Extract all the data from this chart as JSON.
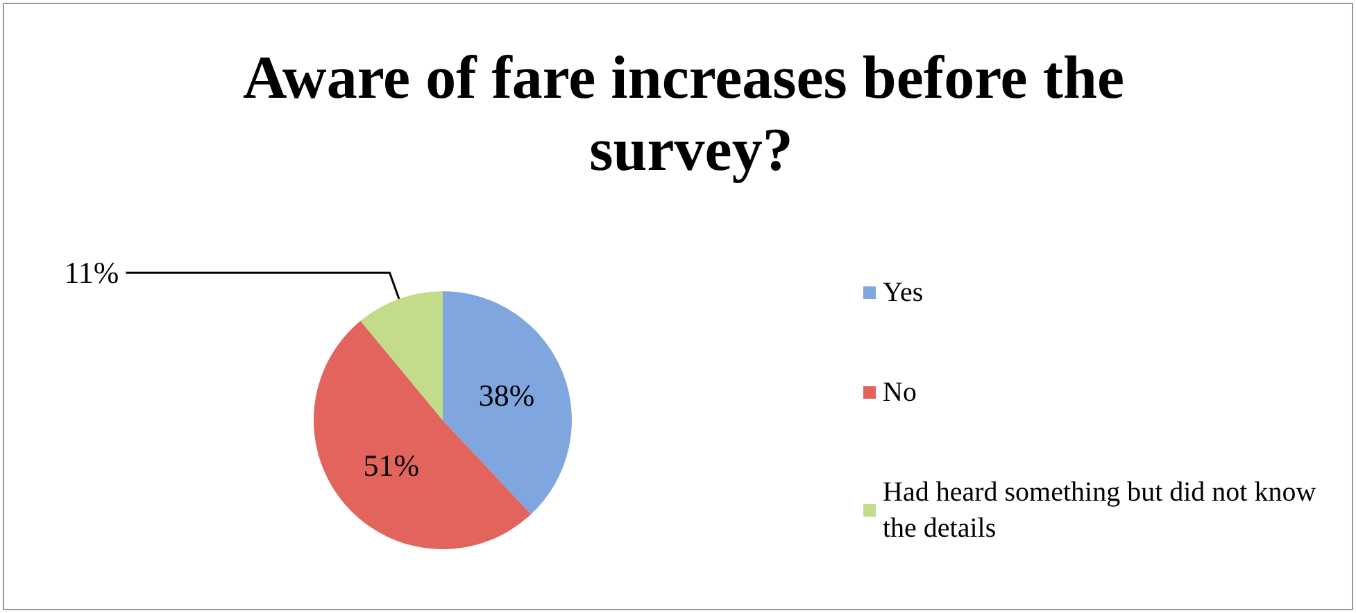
{
  "chart_data": {
    "type": "pie",
    "title": "Aware of fare increases before the survey?",
    "categories": [
      "Yes",
      "No",
      "Had heard something but did not know the details"
    ],
    "values": [
      38,
      51,
      11
    ],
    "value_labels": [
      "38%",
      "51%",
      "11%"
    ],
    "colors": [
      "#7fa6de",
      "#e2645c",
      "#c3dc8a"
    ],
    "legend": "right"
  }
}
